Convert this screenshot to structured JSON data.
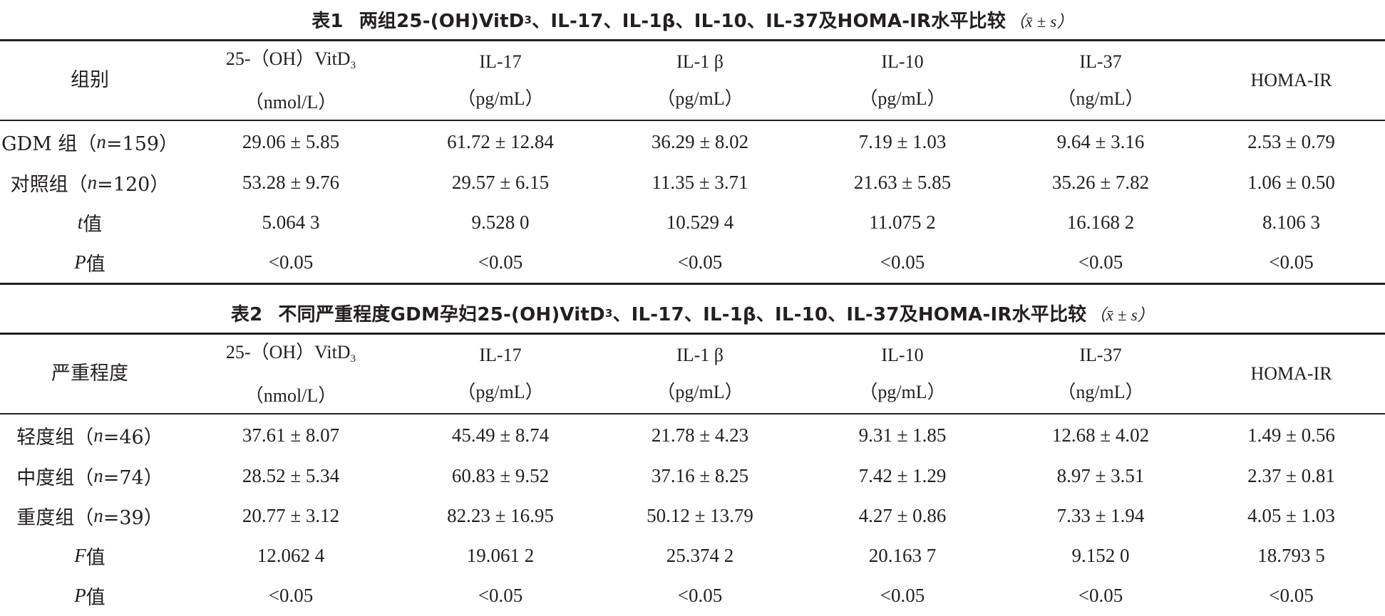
{
  "table1": {
    "caption_num": "表1",
    "caption_pre": "两组25-(OH)VitD",
    "caption_sub": "3",
    "caption_post": "、IL-17、IL-1β、IL-10、IL-37及HOMA-IR水平比较",
    "caption_stat": "x̄ ± s",
    "header": {
      "group_label": "组别",
      "col1_name": "25-（OH）VitD",
      "col1_sub": "3",
      "col1_unit": "（nmol/L）",
      "col2_name": "IL-17",
      "col2_unit": "（pg/mL）",
      "col3_name": "IL-1 β",
      "col3_unit": "（pg/mL）",
      "col4_name": "IL-10",
      "col4_unit": "（pg/mL）",
      "col5_name": "IL-37",
      "col5_unit": "（ng/mL）",
      "col6_name": "HOMA-IR"
    },
    "rows": [
      {
        "label_pre": "GDM 组（",
        "label_it": "n",
        "label_post": "=159）",
        "values": [
          "29.06 ± 5.85",
          "61.72 ± 12.84",
          "36.29 ± 8.02",
          "7.19 ± 1.03",
          "9.64 ± 3.16",
          "2.53 ± 0.79"
        ]
      },
      {
        "label_pre": "对照组（",
        "label_it": "n",
        "label_post": "=120）",
        "values": [
          "53.28 ± 9.76",
          "29.57 ± 6.15",
          "11.35 ± 3.71",
          "21.63 ± 5.85",
          "35.26 ± 7.82",
          "1.06 ± 0.50"
        ]
      },
      {
        "label_pre": "",
        "label_it": "t",
        "label_post": " 值",
        "values": [
          "5.064 3",
          "9.528 0",
          "10.529 4",
          "11.075 2",
          "16.168 2",
          "8.106 3"
        ]
      },
      {
        "label_pre": "",
        "label_it": "P",
        "label_post": " 值",
        "values": [
          "<0.05",
          "<0.05",
          "<0.05",
          "<0.05",
          "<0.05",
          "<0.05"
        ]
      }
    ]
  },
  "table2": {
    "caption_num": "表2",
    "caption_pre": "不同严重程度GDM孕妇25-(OH)VitD",
    "caption_sub": "3",
    "caption_post": "、IL-17、IL-1β、IL-10、IL-37及HOMA-IR水平比较",
    "caption_stat": "x̄ ± s",
    "header": {
      "group_label": "严重程度",
      "col1_name": "25-（OH）VitD",
      "col1_sub": "3",
      "col1_unit": "（nmol/L）",
      "col2_name": "IL-17",
      "col2_unit": "（pg/mL）",
      "col3_name": "IL-1 β",
      "col3_unit": "（pg/mL）",
      "col4_name": "IL-10",
      "col4_unit": "（pg/mL）",
      "col5_name": "IL-37",
      "col5_unit": "（ng/mL）",
      "col6_name": "HOMA-IR"
    },
    "rows": [
      {
        "label_pre": "轻度组（",
        "label_it": "n",
        "label_post": "=46）",
        "values": [
          "37.61 ± 8.07",
          "45.49 ± 8.74",
          "21.78 ± 4.23",
          "9.31 ± 1.85",
          "12.68 ± 4.02",
          "1.49 ± 0.56"
        ]
      },
      {
        "label_pre": "中度组（",
        "label_it": "n",
        "label_post": "=74）",
        "values": [
          "28.52 ± 5.34",
          "60.83 ± 9.52",
          "37.16 ± 8.25",
          "7.42 ± 1.29",
          "8.97 ± 3.51",
          "2.37 ± 0.81"
        ]
      },
      {
        "label_pre": "重度组（",
        "label_it": "n",
        "label_post": "=39）",
        "values": [
          "20.77 ± 3.12",
          "82.23 ± 16.95",
          "50.12 ± 13.79",
          "4.27 ± 0.86",
          "7.33 ± 1.94",
          "4.05 ± 1.03"
        ]
      },
      {
        "label_pre": "",
        "label_it": "F",
        "label_post": " 值",
        "values": [
          "12.062 4",
          "19.061 2",
          "25.374 2",
          "20.163 7",
          "9.152 0",
          "18.793 5"
        ]
      },
      {
        "label_pre": "",
        "label_it": "P",
        "label_post": " 值",
        "values": [
          "<0.05",
          "<0.05",
          "<0.05",
          "<0.05",
          "<0.05",
          "<0.05"
        ]
      }
    ]
  }
}
